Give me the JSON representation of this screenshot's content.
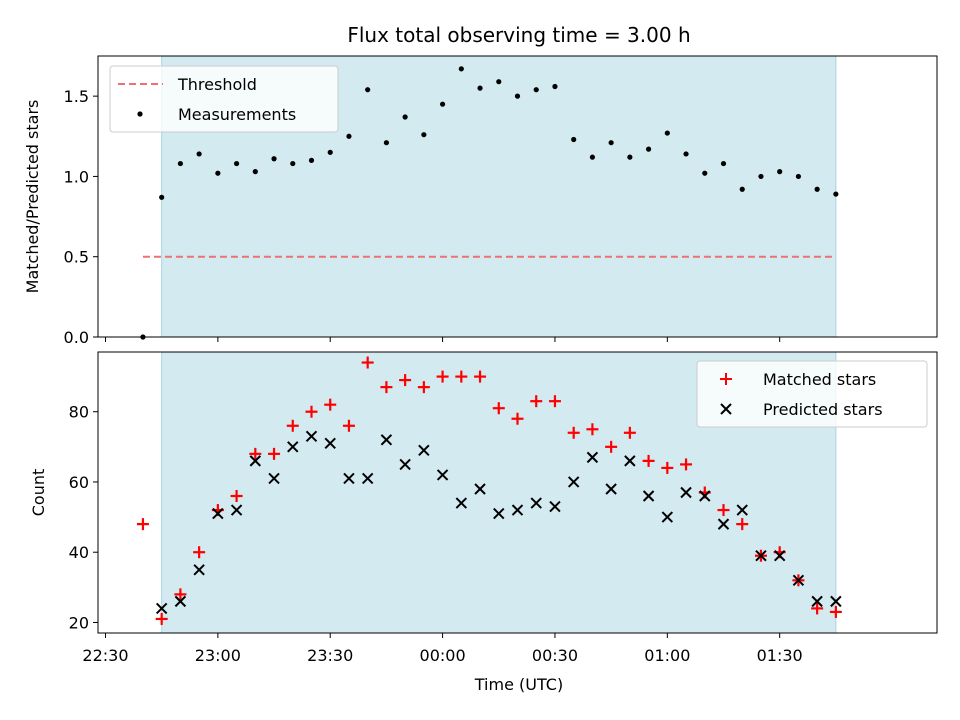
{
  "chart_data": [
    {
      "type": "scatter",
      "title": "Flux total observing time = 3.00 h",
      "ylabel": "Matched/Predicted stars",
      "xlabel": "",
      "xlim": [
        "22:28",
        "02:12"
      ],
      "ylim": [
        0.0,
        1.75
      ],
      "yticks": [
        "0.0",
        "0.5",
        "1.0",
        "1.5"
      ],
      "shaded_span": [
        "22:45",
        "01:45"
      ],
      "shade_color": "#d3eaf1",
      "legend": {
        "placement": "top-left",
        "entries": [
          "Threshold",
          "Measurements"
        ]
      },
      "series": [
        {
          "name": "Threshold",
          "kind": "dashed-line",
          "color": "#f07070",
          "x": [
            "22:40",
            "01:45"
          ],
          "y": [
            0.5,
            0.5
          ]
        },
        {
          "name": "Measurements",
          "kind": "dot",
          "color": "#000000",
          "x": [
            "22:40",
            "22:45",
            "22:50",
            "22:55",
            "23:00",
            "23:05",
            "23:10",
            "23:15",
            "23:20",
            "23:25",
            "23:30",
            "23:35",
            "23:40",
            "23:45",
            "23:50",
            "23:55",
            "00:00",
            "00:05",
            "00:10",
            "00:15",
            "00:20",
            "00:25",
            "00:30",
            "00:35",
            "00:40",
            "00:45",
            "00:50",
            "00:55",
            "01:00",
            "01:05",
            "01:10",
            "01:15",
            "01:20",
            "01:25",
            "01:30",
            "01:35",
            "01:40",
            "01:45"
          ],
          "y": [
            0.0,
            0.87,
            1.08,
            1.14,
            1.02,
            1.08,
            1.03,
            1.11,
            1.08,
            1.1,
            1.15,
            1.25,
            1.54,
            1.21,
            1.37,
            1.26,
            1.45,
            1.67,
            1.55,
            1.59,
            1.5,
            1.54,
            1.56,
            1.23,
            1.12,
            1.21,
            1.12,
            1.17,
            1.27,
            1.14,
            1.02,
            1.08,
            0.92,
            1.0,
            1.03,
            1.0,
            0.92,
            0.89
          ]
        }
      ]
    },
    {
      "type": "scatter",
      "title": "",
      "ylabel": "Count",
      "xlabel": "Time (UTC)",
      "xlim": [
        "22:28",
        "02:12"
      ],
      "ylim": [
        17,
        97
      ],
      "yticks": [
        "20",
        "40",
        "60",
        "80"
      ],
      "xticks": [
        "22:30",
        "23:00",
        "23:30",
        "00:00",
        "00:30",
        "01:00",
        "01:30"
      ],
      "shaded_span": [
        "22:45",
        "01:45"
      ],
      "shade_color": "#d3eaf1",
      "legend": {
        "placement": "top-right",
        "entries": [
          "Matched stars",
          "Predicted stars"
        ]
      },
      "series": [
        {
          "name": "Matched stars",
          "kind": "plus",
          "color": "#ff0000",
          "x": [
            "22:40",
            "22:45",
            "22:50",
            "22:55",
            "23:00",
            "23:05",
            "23:10",
            "23:15",
            "23:20",
            "23:25",
            "23:30",
            "23:35",
            "23:40",
            "23:45",
            "23:50",
            "23:55",
            "00:00",
            "00:05",
            "00:10",
            "00:15",
            "00:20",
            "00:25",
            "00:30",
            "00:35",
            "00:40",
            "00:45",
            "00:50",
            "00:55",
            "01:00",
            "01:05",
            "01:10",
            "01:15",
            "01:20",
            "01:25",
            "01:30",
            "01:35",
            "01:40",
            "01:45"
          ],
          "y": [
            48,
            21,
            28,
            40,
            52,
            56,
            68,
            68,
            76,
            80,
            82,
            76,
            94,
            87,
            89,
            87,
            90,
            90,
            90,
            81,
            78,
            83,
            83,
            74,
            75,
            70,
            74,
            66,
            64,
            65,
            57,
            52,
            48,
            39,
            40,
            32,
            24,
            23
          ]
        },
        {
          "name": "Predicted stars",
          "kind": "x",
          "color": "#000000",
          "x": [
            "22:45",
            "22:50",
            "22:55",
            "23:00",
            "23:05",
            "23:10",
            "23:15",
            "23:20",
            "23:25",
            "23:30",
            "23:35",
            "23:40",
            "23:45",
            "23:50",
            "23:55",
            "00:00",
            "00:05",
            "00:10",
            "00:15",
            "00:20",
            "00:25",
            "00:30",
            "00:35",
            "00:40",
            "00:45",
            "00:50",
            "00:55",
            "01:00",
            "01:05",
            "01:10",
            "01:15",
            "01:20",
            "01:25",
            "01:30",
            "01:35",
            "01:40",
            "01:45"
          ],
          "y": [
            24,
            26,
            35,
            51,
            52,
            66,
            61,
            70,
            73,
            71,
            61,
            61,
            72,
            65,
            69,
            62,
            54,
            58,
            51,
            52,
            54,
            53,
            60,
            67,
            58,
            66,
            56,
            50,
            57,
            56,
            48,
            52,
            39,
            39,
            32,
            26,
            26
          ]
        }
      ]
    }
  ]
}
